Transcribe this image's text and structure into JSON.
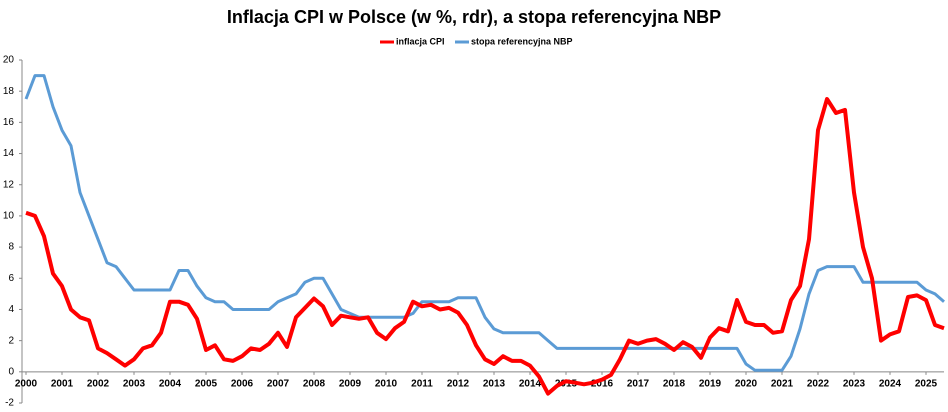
{
  "chart_data": {
    "type": "line",
    "title": "Inflacja CPI w Polsce (w %, rdr), a stopa referencyjna NBP",
    "x": [
      2000,
      2000.25,
      2000.5,
      2000.75,
      2001,
      2001.25,
      2001.5,
      2001.75,
      2002,
      2002.25,
      2002.5,
      2002.75,
      2003,
      2003.25,
      2003.5,
      2003.75,
      2004,
      2004.25,
      2004.5,
      2004.75,
      2005,
      2005.25,
      2005.5,
      2005.75,
      2006,
      2006.25,
      2006.5,
      2006.75,
      2007,
      2007.25,
      2007.5,
      2007.75,
      2008,
      2008.25,
      2008.5,
      2008.75,
      2009,
      2009.25,
      2009.5,
      2009.75,
      2010,
      2010.25,
      2010.5,
      2010.75,
      2011,
      2011.25,
      2011.5,
      2011.75,
      2012,
      2012.25,
      2012.5,
      2012.75,
      2013,
      2013.25,
      2013.5,
      2013.75,
      2014,
      2014.25,
      2014.5,
      2014.75,
      2015,
      2015.25,
      2015.5,
      2015.75,
      2016,
      2016.25,
      2016.5,
      2016.75,
      2017,
      2017.25,
      2017.5,
      2017.75,
      2018,
      2018.25,
      2018.5,
      2018.75,
      2019,
      2019.25,
      2019.5,
      2019.75,
      2020,
      2020.25,
      2020.5,
      2020.75,
      2021,
      2021.25,
      2021.5,
      2021.75,
      2022,
      2022.25,
      2022.5,
      2022.75,
      2023,
      2023.25,
      2023.5,
      2023.75,
      2024,
      2024.25,
      2024.5,
      2024.75,
      2025,
      2025.25,
      2025.5
    ],
    "series": [
      {
        "name": "inflacja CPI",
        "color": "#ff0000",
        "values": [
          10.2,
          10.0,
          8.7,
          6.3,
          5.5,
          4.0,
          3.5,
          3.3,
          1.5,
          1.2,
          0.8,
          0.4,
          0.8,
          1.5,
          1.7,
          2.5,
          4.5,
          4.5,
          4.3,
          3.4,
          1.4,
          1.7,
          0.8,
          0.7,
          1.0,
          1.5,
          1.4,
          1.8,
          2.5,
          1.6,
          3.5,
          4.1,
          4.7,
          4.2,
          3.0,
          3.6,
          3.5,
          3.4,
          3.5,
          2.5,
          2.1,
          2.8,
          3.2,
          4.5,
          4.2,
          4.3,
          4.0,
          4.1,
          3.8,
          3.0,
          1.7,
          0.8,
          0.5,
          1.0,
          0.7,
          0.7,
          0.4,
          -0.3,
          -1.4,
          -0.9,
          -0.6,
          -0.7,
          -0.8,
          -0.7,
          -0.5,
          -0.2,
          0.8,
          2.0,
          1.8,
          2.0,
          2.1,
          1.8,
          1.4,
          1.9,
          1.6,
          0.9,
          2.2,
          2.8,
          2.6,
          4.6,
          3.2,
          3.0,
          3.0,
          2.5,
          2.6,
          4.6,
          5.5,
          8.5,
          15.5,
          17.5,
          16.6,
          16.8,
          11.5,
          8.0,
          6.0,
          2.0,
          2.4,
          2.6,
          4.8,
          4.9,
          4.6,
          3.0,
          2.8
        ]
      },
      {
        "name": "stopa referencyjna NBP",
        "color": "#5b9bd5",
        "values": [
          17.5,
          19,
          19,
          17,
          15.5,
          14.5,
          11.5,
          10,
          8.5,
          7.0,
          6.75,
          6.0,
          5.25,
          5.25,
          5.25,
          5.25,
          5.25,
          6.5,
          6.5,
          5.5,
          4.75,
          4.5,
          4.5,
          4.0,
          4.0,
          4.0,
          4.0,
          4.0,
          4.5,
          4.75,
          5.0,
          5.75,
          6.0,
          6.0,
          5.0,
          4.0,
          3.75,
          3.5,
          3.5,
          3.5,
          3.5,
          3.5,
          3.5,
          3.75,
          4.5,
          4.5,
          4.5,
          4.5,
          4.75,
          4.75,
          4.75,
          3.5,
          2.75,
          2.5,
          2.5,
          2.5,
          2.5,
          2.5,
          2.0,
          1.5,
          1.5,
          1.5,
          1.5,
          1.5,
          1.5,
          1.5,
          1.5,
          1.5,
          1.5,
          1.5,
          1.5,
          1.5,
          1.5,
          1.5,
          1.5,
          1.5,
          1.5,
          1.5,
          1.5,
          1.5,
          0.5,
          0.1,
          0.1,
          0.1,
          0.1,
          1.0,
          2.75,
          5.0,
          6.5,
          6.75,
          6.75,
          6.75,
          6.75,
          5.75,
          5.75,
          5.75,
          5.75,
          5.75,
          5.75,
          5.75,
          5.25,
          5.0,
          4.5
        ]
      }
    ],
    "xlim": [
      2000,
      2025.5
    ],
    "xticks": [
      2000,
      2001,
      2002,
      2003,
      2004,
      2005,
      2006,
      2007,
      2008,
      2009,
      2010,
      2011,
      2012,
      2013,
      2014,
      2015,
      2016,
      2017,
      2018,
      2019,
      2020,
      2021,
      2022,
      2023,
      2024,
      2025
    ],
    "ylim": [
      -2,
      20
    ],
    "yticks": [
      -2,
      0,
      2,
      4,
      6,
      8,
      10,
      12,
      14,
      16,
      18,
      20
    ]
  }
}
